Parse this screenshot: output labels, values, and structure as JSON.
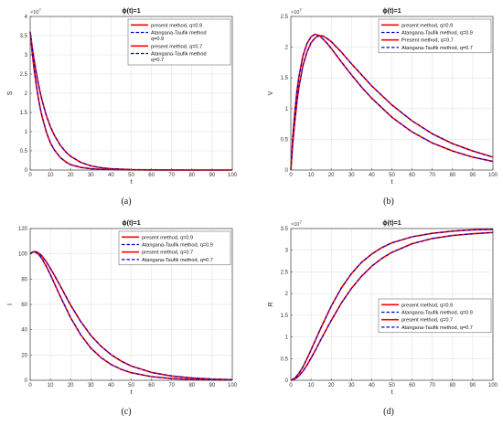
{
  "colors": {
    "present": "#ff0000",
    "atangana": "#0000cc",
    "grid": "#dddddd",
    "axis": "#444444"
  },
  "chart_data": [
    {
      "type": "line",
      "caption": "(a)",
      "title": "ϕ(t)=1",
      "xlabel": "t",
      "ylabel": "S",
      "exponent_label": "×10",
      "exponent_power": "7",
      "xlim": [
        0,
        100
      ],
      "ylim": [
        0,
        4
      ],
      "x_ticks": [
        0,
        10,
        20,
        30,
        40,
        50,
        60,
        70,
        80,
        90,
        100
      ],
      "y_ticks": [
        0,
        0.5,
        1,
        1.5,
        2,
        2.5,
        3,
        3.5,
        4
      ],
      "y_tick_labels": [
        "0",
        "0.5",
        "1",
        "1.5",
        "2",
        "2.5",
        "3",
        "3.5",
        "4"
      ],
      "grid": true,
      "legend_position": "top-right",
      "legend": [
        {
          "text": [
            "present method, q=0.9"
          ],
          "style": "present"
        },
        {
          "text": [
            "Atangana-Taufik method",
            "q=0.9"
          ],
          "style": "atangana"
        },
        {
          "text": [
            "present method, q=0.7"
          ],
          "style": "present"
        },
        {
          "text": [
            "Atangana-Taufik method",
            "q=0.7"
          ],
          "style": "atangana"
        }
      ],
      "x": [
        0,
        1,
        2,
        3,
        4,
        5,
        6,
        8,
        10,
        12,
        15,
        18,
        20,
        25,
        30,
        35,
        40,
        50,
        60,
        70,
        80,
        90,
        100
      ],
      "series": [
        {
          "q": "0.9",
          "values": [
            3.6,
            3.06,
            2.6,
            2.22,
            1.89,
            1.6,
            1.37,
            0.99,
            0.71,
            0.52,
            0.32,
            0.2,
            0.14,
            0.07,
            0.035,
            0.018,
            0.009,
            0.003,
            0.001,
            0.0,
            0.0,
            0.0,
            0.0
          ]
        },
        {
          "q": "0.7",
          "values": [
            3.6,
            3.2,
            2.85,
            2.54,
            2.26,
            2.01,
            1.79,
            1.42,
            1.13,
            0.9,
            0.64,
            0.45,
            0.36,
            0.2,
            0.11,
            0.06,
            0.034,
            0.011,
            0.004,
            0.001,
            0.0,
            0.0,
            0.0
          ]
        }
      ]
    },
    {
      "type": "line",
      "caption": "(b)",
      "title": "ϕ(t)=1",
      "xlabel": "t",
      "ylabel": "V",
      "exponent_label": "×10",
      "exponent_power": "7",
      "xlim": [
        0,
        100
      ],
      "ylim": [
        0,
        2.5
      ],
      "x_ticks": [
        0,
        10,
        20,
        30,
        40,
        50,
        60,
        70,
        80,
        90,
        100
      ],
      "y_ticks": [
        0,
        0.5,
        1,
        1.5,
        2,
        2.5
      ],
      "y_tick_labels": [
        "0",
        "0.5",
        "1",
        "1.5",
        "2",
        "2.5"
      ],
      "grid": true,
      "legend_position": "top-right",
      "legend": [
        {
          "text": [
            "present method, q=0.9"
          ],
          "style": "present"
        },
        {
          "text": [
            "Atangana-Taufik method, q=0.9"
          ],
          "style": "atangana"
        },
        {
          "text": [
            "Present method, q=0.7"
          ],
          "style": "present"
        },
        {
          "text": [
            "Atangana-Taufik method, q=0.7"
          ],
          "style": "atangana"
        }
      ],
      "x": [
        0,
        1,
        2,
        3,
        4,
        6,
        8,
        10,
        12,
        14,
        16,
        18,
        20,
        25,
        30,
        35,
        40,
        50,
        60,
        70,
        80,
        90,
        100
      ],
      "series": [
        {
          "q": "0.9",
          "values": [
            0,
            0.55,
            0.95,
            1.28,
            1.52,
            1.86,
            2.06,
            2.17,
            2.21,
            2.19,
            2.13,
            2.06,
            1.98,
            1.76,
            1.55,
            1.35,
            1.17,
            0.86,
            0.62,
            0.44,
            0.31,
            0.21,
            0.14
          ]
        },
        {
          "q": "0.7",
          "values": [
            0,
            0.45,
            0.8,
            1.1,
            1.35,
            1.7,
            1.92,
            2.07,
            2.15,
            2.19,
            2.18,
            2.14,
            2.09,
            1.92,
            1.73,
            1.55,
            1.37,
            1.06,
            0.8,
            0.59,
            0.43,
            0.31,
            0.21
          ]
        }
      ]
    },
    {
      "type": "line",
      "caption": "(c)",
      "title": "ϕ(t)=1",
      "xlabel": "t",
      "ylabel": "I",
      "xlim": [
        0,
        100
      ],
      "ylim": [
        0,
        120
      ],
      "x_ticks": [
        0,
        10,
        20,
        30,
        40,
        50,
        60,
        70,
        80,
        90,
        100
      ],
      "y_ticks": [
        0,
        20,
        40,
        60,
        80,
        100,
        120
      ],
      "y_tick_labels": [
        "0",
        "20",
        "40",
        "60",
        "80",
        "100",
        "120"
      ],
      "grid": true,
      "legend_position": "top-right",
      "legend": [
        {
          "text": [
            "present method, q=0.9"
          ],
          "style": "present"
        },
        {
          "text": [
            "Atangana-Taufik method, q=0.9"
          ],
          "style": "atangana"
        },
        {
          "text": [
            "present method, q=0.7"
          ],
          "style": "present"
        },
        {
          "text": [
            "Atangana-Taufik method, q=0.7"
          ],
          "style": "atangana"
        }
      ],
      "x": [
        0,
        1,
        2,
        3,
        4,
        5,
        6,
        8,
        10,
        12,
        15,
        20,
        25,
        30,
        35,
        40,
        45,
        50,
        60,
        70,
        80,
        90,
        100
      ],
      "series": [
        {
          "q": "0.9",
          "values": [
            100,
            101.2,
            101.5,
            101,
            99.8,
            98,
            95.7,
            90,
            83.5,
            76.5,
            66,
            49.5,
            36,
            25.5,
            18,
            12.5,
            8.7,
            6,
            2.9,
            1.4,
            0.7,
            0.3,
            0.15
          ]
        },
        {
          "q": "0.7",
          "values": [
            100,
            101.2,
            101.8,
            101.6,
            100.8,
            99.6,
            98,
            93.7,
            88.5,
            83,
            74.3,
            59.5,
            46.5,
            35.5,
            27,
            20.3,
            15.2,
            11.3,
            6.2,
            3.4,
            1.9,
            1.0,
            0.5
          ]
        }
      ]
    },
    {
      "type": "line",
      "caption": "(d)",
      "title": "ϕ(t)=1",
      "xlabel": "t",
      "ylabel": "R",
      "exponent_label": "×10",
      "exponent_power": "7",
      "xlim": [
        0,
        100
      ],
      "ylim": [
        0,
        3.5
      ],
      "x_ticks": [
        0,
        10,
        20,
        30,
        40,
        50,
        60,
        70,
        80,
        90,
        100
      ],
      "y_ticks": [
        0,
        0.5,
        1,
        1.5,
        2,
        2.5,
        3,
        3.5
      ],
      "y_tick_labels": [
        "0",
        "0.5",
        "1",
        "1.5",
        "2",
        "2.5",
        "3",
        "3.5"
      ],
      "grid": true,
      "legend_position": "bottom-right",
      "legend": [
        {
          "text": [
            "present method, q=0.9"
          ],
          "style": "present"
        },
        {
          "text": [
            "Atangana-Taufik method, q=0.9"
          ],
          "style": "atangana"
        },
        {
          "text": [
            "present method, q=0.7"
          ],
          "style": "present"
        },
        {
          "text": [
            "Atangana-Taufik method, q=0.7"
          ],
          "style": "atangana"
        }
      ],
      "x": [
        0,
        2,
        4,
        6,
        8,
        10,
        12,
        15,
        20,
        25,
        30,
        35,
        40,
        45,
        50,
        60,
        70,
        80,
        90,
        100
      ],
      "series": [
        {
          "q": "0.9",
          "values": [
            0,
            0.05,
            0.16,
            0.31,
            0.5,
            0.7,
            0.91,
            1.22,
            1.71,
            2.13,
            2.46,
            2.72,
            2.91,
            3.06,
            3.17,
            3.31,
            3.39,
            3.44,
            3.47,
            3.48
          ]
        },
        {
          "q": "0.7",
          "values": [
            0,
            0.03,
            0.1,
            0.21,
            0.35,
            0.51,
            0.68,
            0.95,
            1.38,
            1.78,
            2.12,
            2.4,
            2.63,
            2.81,
            2.95,
            3.15,
            3.27,
            3.34,
            3.38,
            3.41
          ]
        }
      ]
    }
  ]
}
